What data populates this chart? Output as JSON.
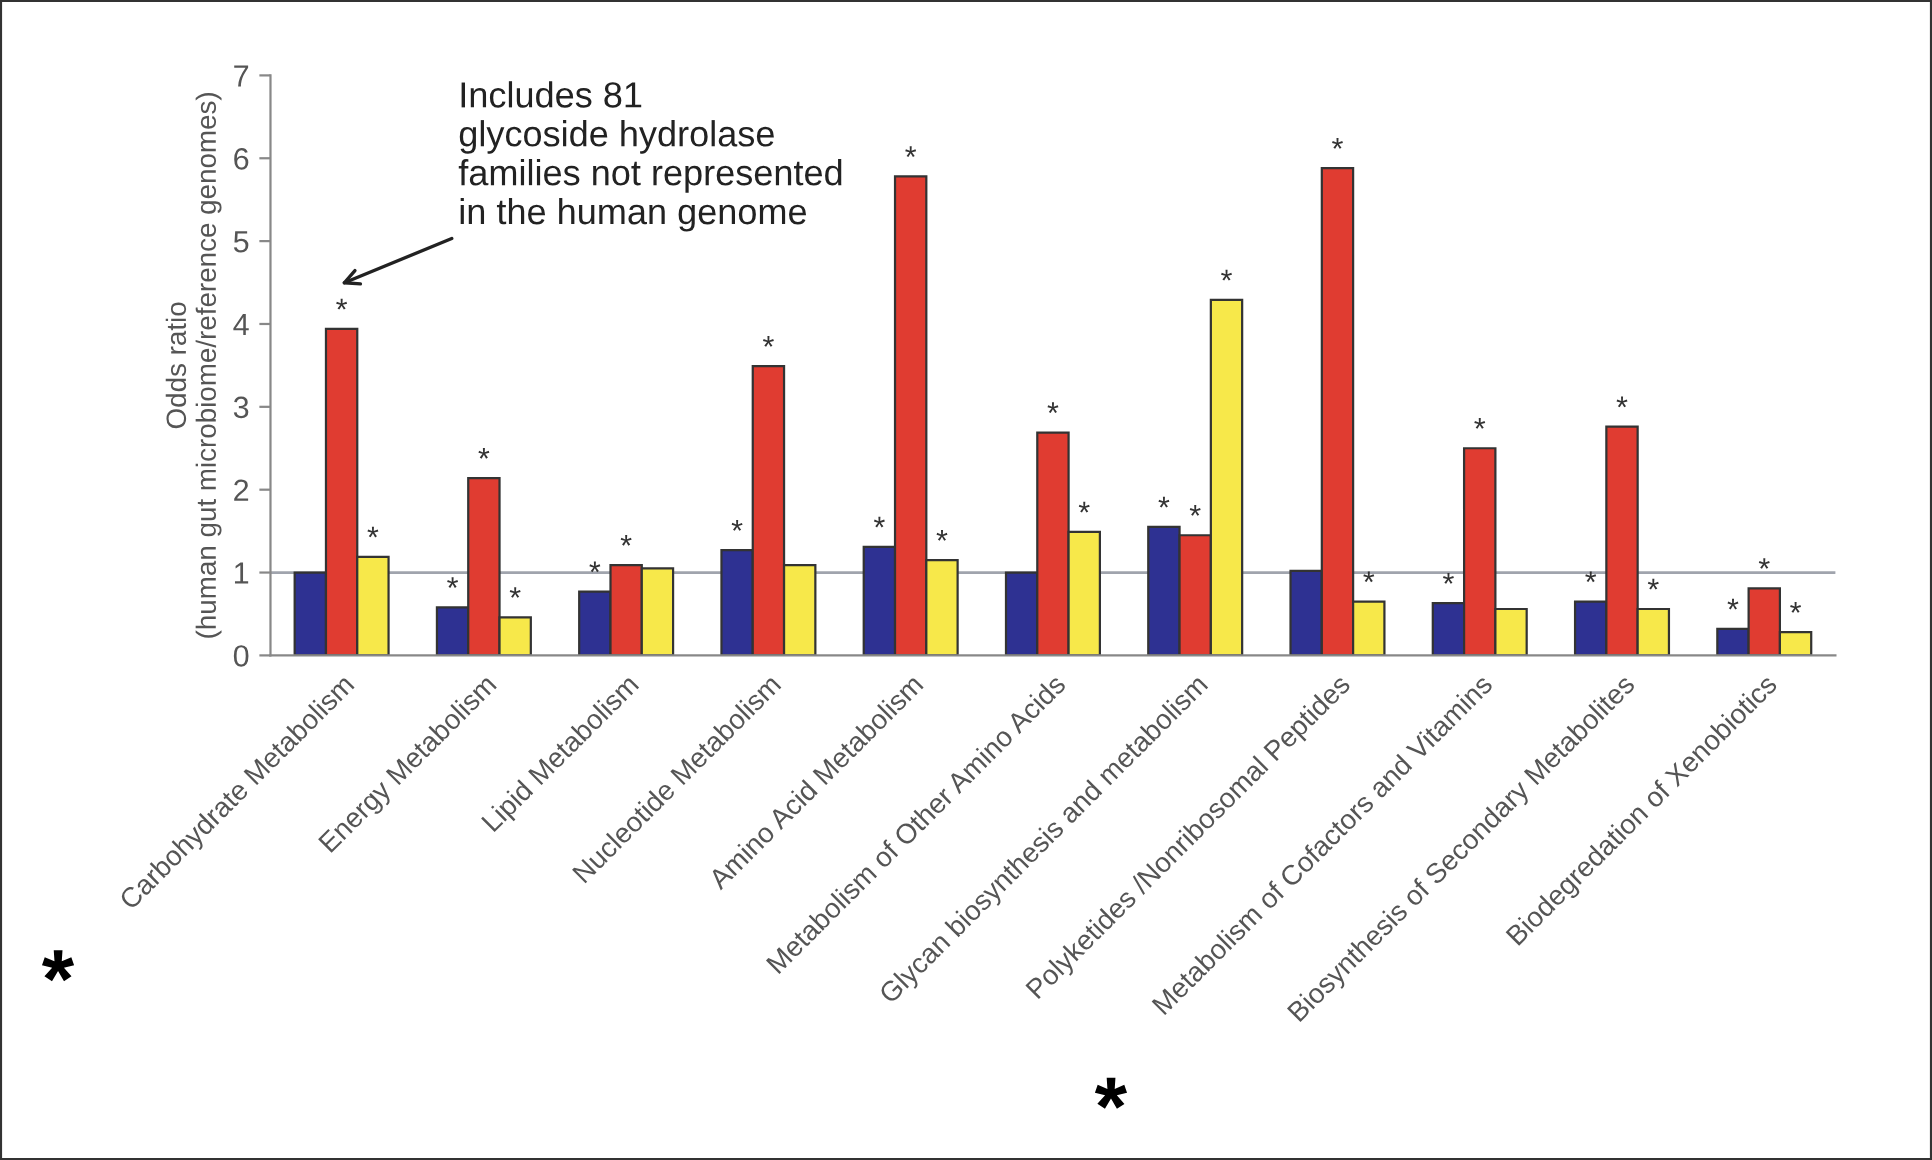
{
  "chart_data": {
    "type": "bar",
    "ylabel": "Odds ratio\n(human gut microbiome/reference genomes)",
    "categories": [
      "Carbohydrate Metabolism",
      "Energy Metabolism",
      "Lipid Metabolism",
      "Nucleotide Metabolism",
      "Amino Acid Metabolism",
      "Metabolism of Other Amino Acids",
      "Glycan biosynthesis and metabolism",
      "Polyketides /Nonribosomal Peptides",
      "Metabolism of Cofactors and Vitamins",
      "Biosynthesis of Secondary Metabolites",
      "Biodegredation of Xenobiotics"
    ],
    "series": [
      {
        "color": "#2e3192",
        "values": [
          1.0,
          0.58,
          0.77,
          1.27,
          1.31,
          1.0,
          1.55,
          1.02,
          0.63,
          0.65,
          0.32
        ],
        "value_labels": [
          null,
          "*",
          "*",
          "*",
          "*",
          null,
          "*",
          null,
          "*",
          "*",
          "*"
        ]
      },
      {
        "color": "#e03c31",
        "values": [
          3.94,
          2.14,
          1.09,
          3.49,
          5.78,
          2.69,
          1.45,
          5.88,
          2.5,
          2.76,
          0.81
        ],
        "value_labels": [
          "*",
          "*",
          "*",
          "*",
          "*",
          "*",
          "*",
          "*",
          "*",
          "*",
          "*"
        ]
      },
      {
        "color": "#f7e84a",
        "values": [
          1.19,
          0.46,
          1.05,
          1.09,
          1.15,
          1.49,
          4.29,
          0.65,
          0.56,
          0.56,
          0.28
        ],
        "value_labels": [
          "*",
          "*",
          null,
          null,
          "*",
          "*",
          "*",
          "*",
          null,
          "*",
          "*"
        ]
      }
    ],
    "ylim": [
      0,
      7
    ],
    "yticks": [
      0,
      1,
      2,
      3,
      4,
      5,
      6,
      7
    ],
    "grid": false,
    "legend": false,
    "ref_lines": [
      {
        "axis": "y",
        "value": 1,
        "color": "#a0a4ad"
      }
    ],
    "annotations": [
      "Includes 81\nglycoside hydrolase\nfamilies not represented\nin the human genome",
      "*",
      "*"
    ]
  }
}
